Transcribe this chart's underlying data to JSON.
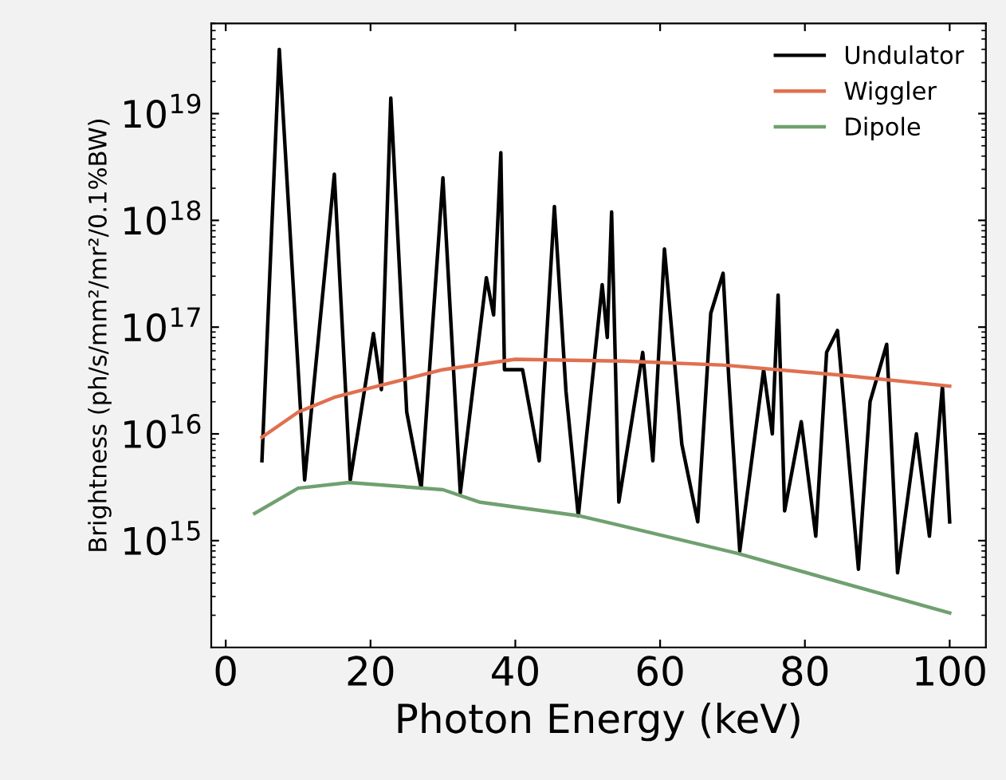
{
  "chart_data": {
    "type": "line",
    "xlabel": "Photon Energy (keV)",
    "ylabel": "Brightness (ph/s/mm²/mr²/0.1%BW)",
    "log": "y",
    "xlim": [
      -2,
      105
    ],
    "ylim": [
      100000000000000.0,
      7e+19
    ],
    "xticks": [
      0,
      20,
      40,
      60,
      80,
      100
    ],
    "yticks": [
      {
        "value": 1000000000000000.0,
        "label": "10$^{15}$"
      },
      {
        "value": 1e+16,
        "label": "10$^{16}$"
      },
      {
        "value": 1e+17,
        "label": "10$^{17}$"
      },
      {
        "value": 1e+18,
        "label": "10$^{18}$"
      },
      {
        "value": 1e+19,
        "label": "10$^{19}$"
      }
    ],
    "legend": "top right",
    "grid": false,
    "marker": "none",
    "line_style": "solid",
    "series": [
      {
        "name": "Undulator",
        "color": "#000000",
        "x": [
          5,
          7.4,
          10.9,
          15,
          17.2,
          20.4,
          21.5,
          22.8,
          25,
          27,
          30,
          32.4,
          36,
          37,
          38,
          38.5,
          41,
          43.3,
          45.4,
          47,
          48.7,
          52,
          52.7,
          53.3,
          54.3,
          57.6,
          59,
          60.6,
          63,
          65.2,
          67,
          68.7,
          69.5,
          71,
          74.3,
          75.5,
          76.3,
          77.2,
          79.5,
          81.5,
          83,
          84.5,
          87.4,
          89,
          91.3,
          92.8,
          95.4,
          97.2,
          99,
          100
        ],
        "values": [
          5600000000000000.0,
          4e+19,
          3700000000000000.0,
          2.7e+18,
          3700000000000000.0,
          8.7e+16,
          2.6e+16,
          1.4e+19,
          1.6e+16,
          3100000000000000.0,
          2.5e+18,
          2800000000000000.0,
          2.9e+17,
          1.3e+17,
          4.3e+18,
          4e+16,
          4e+16,
          5600000000000000.0,
          1.35e+18,
          2.5e+16,
          1700000000000000.0,
          2.5e+17,
          8e+16,
          1.2e+18,
          2300000000000000.0,
          5.8e+16,
          5600000000000000.0,
          5.4e+17,
          8000000000000000.0,
          1500000000000000.0,
          1.35e+17,
          3.2e+17,
          3.2e+16,
          800000000000000.0,
          4e+16,
          1e+16,
          2e+17,
          1900000000000000.0,
          1.3e+16,
          1100000000000000.0,
          5.8e+16,
          9.3e+16,
          540000000000000.0,
          2e+16,
          6.9e+16,
          500000000000000.0,
          1e+16,
          1100000000000000.0,
          2.8e+16,
          1500000000000000.0
        ]
      },
      {
        "name": "Wiggler",
        "color": "#e07050",
        "x": [
          5,
          10,
          15,
          20,
          30,
          40,
          55,
          69,
          86,
          100
        ],
        "values": [
          9300000000000000.0,
          1.6e+16,
          2.2e+16,
          2.7e+16,
          4e+16,
          5e+16,
          4.8e+16,
          4.4e+16,
          3.5e+16,
          2.8e+16
        ]
      },
      {
        "name": "Dipole",
        "color": "#70a070",
        "x": [
          4,
          10,
          17,
          30,
          35,
          49,
          70.7,
          100
        ],
        "values": [
          1800000000000000.0,
          3100000000000000.0,
          3500000000000000.0,
          3000000000000000.0,
          2300000000000000.0,
          1700000000000000.0,
          760000000000000.0,
          210000000000000.0
        ]
      }
    ]
  }
}
